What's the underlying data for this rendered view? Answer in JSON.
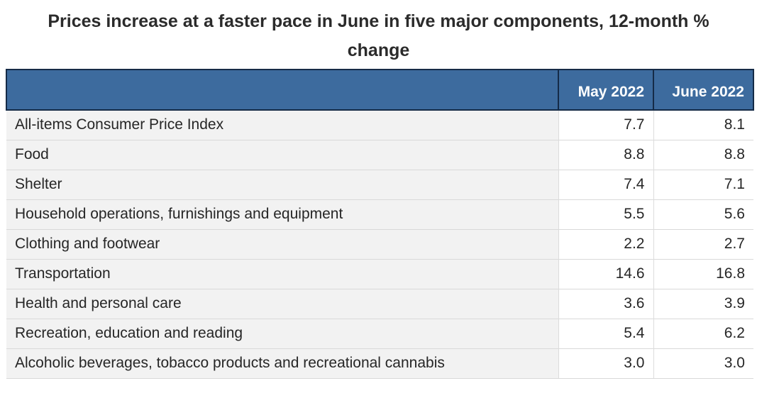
{
  "title": "Prices increase at a faster pace in June in five major components, 12-month % change",
  "table": {
    "header": {
      "label": "",
      "may": "May 2022",
      "june": "June 2022"
    },
    "rows": [
      {
        "label": "All-items Consumer Price Index",
        "may": "7.7",
        "june": "8.1"
      },
      {
        "label": "Food",
        "may": "8.8",
        "june": "8.8"
      },
      {
        "label": "Shelter",
        "may": "7.4",
        "june": "7.1"
      },
      {
        "label": "Household operations, furnishings and equipment",
        "may": "5.5",
        "june": "5.6"
      },
      {
        "label": "Clothing and footwear",
        "may": "2.2",
        "june": "2.7"
      },
      {
        "label": "Transportation",
        "may": "14.6",
        "june": "16.8"
      },
      {
        "label": "Health and personal care",
        "may": "3.6",
        "june": "3.9"
      },
      {
        "label": "Recreation, education and reading",
        "may": "5.4",
        "june": "6.2"
      },
      {
        "label": "Alcoholic beverages, tobacco products and recreational cannabis",
        "may": "3.0",
        "june": "3.0"
      }
    ]
  },
  "colors": {
    "header_bg": "#3d6b9e",
    "header_text": "#ffffff",
    "header_border": "#152b47",
    "label_column_bg": "#f2f2f2",
    "value_column_bg": "#ffffff",
    "row_separator": "#d9d9d9",
    "body_text": "#262626",
    "title_text": "#2b2b2b"
  },
  "chart_data": {
    "type": "table",
    "title": "Prices increase at a faster pace in June in five major components, 12-month % change",
    "categories": [
      "All-items Consumer Price Index",
      "Food",
      "Shelter",
      "Household operations, furnishings and equipment",
      "Clothing and footwear",
      "Transportation",
      "Health and personal care",
      "Recreation, education and reading",
      "Alcoholic beverages, tobacco products and recreational cannabis"
    ],
    "series": [
      {
        "name": "May 2022",
        "values": [
          7.7,
          8.8,
          7.4,
          5.5,
          2.2,
          14.6,
          3.6,
          5.4,
          3.0
        ]
      },
      {
        "name": "June 2022",
        "values": [
          8.1,
          8.8,
          7.1,
          5.6,
          2.7,
          16.8,
          3.9,
          6.2,
          3.0
        ]
      }
    ],
    "unit": "12-month % change",
    "legend_position": "table-header",
    "grid": true
  }
}
